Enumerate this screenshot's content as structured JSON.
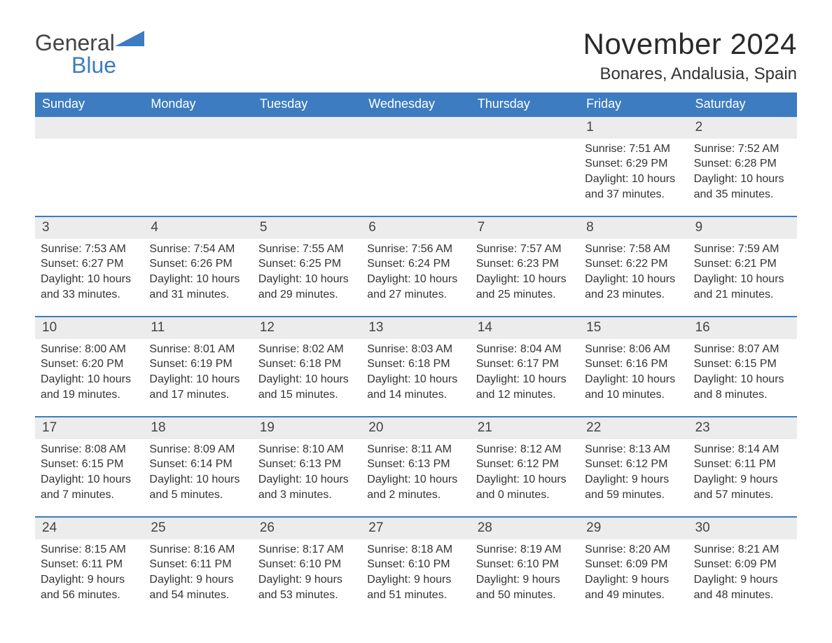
{
  "brand": {
    "name_a": "General",
    "name_b": "Blue",
    "brand_color": "#3d7cc0"
  },
  "title": {
    "month": "November 2024",
    "location": "Bonares, Andalusia, Spain"
  },
  "weekdays": [
    "Sunday",
    "Monday",
    "Tuesday",
    "Wednesday",
    "Thursday",
    "Friday",
    "Saturday"
  ],
  "weeks": [
    [
      {
        "blank": true
      },
      {
        "blank": true
      },
      {
        "blank": true
      },
      {
        "blank": true
      },
      {
        "blank": true
      },
      {
        "date": "1",
        "sunrise": "Sunrise: 7:51 AM",
        "sunset": "Sunset: 6:29 PM",
        "daylight": "Daylight: 10 hours and 37 minutes."
      },
      {
        "date": "2",
        "sunrise": "Sunrise: 7:52 AM",
        "sunset": "Sunset: 6:28 PM",
        "daylight": "Daylight: 10 hours and 35 minutes."
      }
    ],
    [
      {
        "date": "3",
        "sunrise": "Sunrise: 7:53 AM",
        "sunset": "Sunset: 6:27 PM",
        "daylight": "Daylight: 10 hours and 33 minutes."
      },
      {
        "date": "4",
        "sunrise": "Sunrise: 7:54 AM",
        "sunset": "Sunset: 6:26 PM",
        "daylight": "Daylight: 10 hours and 31 minutes."
      },
      {
        "date": "5",
        "sunrise": "Sunrise: 7:55 AM",
        "sunset": "Sunset: 6:25 PM",
        "daylight": "Daylight: 10 hours and 29 minutes."
      },
      {
        "date": "6",
        "sunrise": "Sunrise: 7:56 AM",
        "sunset": "Sunset: 6:24 PM",
        "daylight": "Daylight: 10 hours and 27 minutes."
      },
      {
        "date": "7",
        "sunrise": "Sunrise: 7:57 AM",
        "sunset": "Sunset: 6:23 PM",
        "daylight": "Daylight: 10 hours and 25 minutes."
      },
      {
        "date": "8",
        "sunrise": "Sunrise: 7:58 AM",
        "sunset": "Sunset: 6:22 PM",
        "daylight": "Daylight: 10 hours and 23 minutes."
      },
      {
        "date": "9",
        "sunrise": "Sunrise: 7:59 AM",
        "sunset": "Sunset: 6:21 PM",
        "daylight": "Daylight: 10 hours and 21 minutes."
      }
    ],
    [
      {
        "date": "10",
        "sunrise": "Sunrise: 8:00 AM",
        "sunset": "Sunset: 6:20 PM",
        "daylight": "Daylight: 10 hours and 19 minutes."
      },
      {
        "date": "11",
        "sunrise": "Sunrise: 8:01 AM",
        "sunset": "Sunset: 6:19 PM",
        "daylight": "Daylight: 10 hours and 17 minutes."
      },
      {
        "date": "12",
        "sunrise": "Sunrise: 8:02 AM",
        "sunset": "Sunset: 6:18 PM",
        "daylight": "Daylight: 10 hours and 15 minutes."
      },
      {
        "date": "13",
        "sunrise": "Sunrise: 8:03 AM",
        "sunset": "Sunset: 6:18 PM",
        "daylight": "Daylight: 10 hours and 14 minutes."
      },
      {
        "date": "14",
        "sunrise": "Sunrise: 8:04 AM",
        "sunset": "Sunset: 6:17 PM",
        "daylight": "Daylight: 10 hours and 12 minutes."
      },
      {
        "date": "15",
        "sunrise": "Sunrise: 8:06 AM",
        "sunset": "Sunset: 6:16 PM",
        "daylight": "Daylight: 10 hours and 10 minutes."
      },
      {
        "date": "16",
        "sunrise": "Sunrise: 8:07 AM",
        "sunset": "Sunset: 6:15 PM",
        "daylight": "Daylight: 10 hours and 8 minutes."
      }
    ],
    [
      {
        "date": "17",
        "sunrise": "Sunrise: 8:08 AM",
        "sunset": "Sunset: 6:15 PM",
        "daylight": "Daylight: 10 hours and 7 minutes."
      },
      {
        "date": "18",
        "sunrise": "Sunrise: 8:09 AM",
        "sunset": "Sunset: 6:14 PM",
        "daylight": "Daylight: 10 hours and 5 minutes."
      },
      {
        "date": "19",
        "sunrise": "Sunrise: 8:10 AM",
        "sunset": "Sunset: 6:13 PM",
        "daylight": "Daylight: 10 hours and 3 minutes."
      },
      {
        "date": "20",
        "sunrise": "Sunrise: 8:11 AM",
        "sunset": "Sunset: 6:13 PM",
        "daylight": "Daylight: 10 hours and 2 minutes."
      },
      {
        "date": "21",
        "sunrise": "Sunrise: 8:12 AM",
        "sunset": "Sunset: 6:12 PM",
        "daylight": "Daylight: 10 hours and 0 minutes."
      },
      {
        "date": "22",
        "sunrise": "Sunrise: 8:13 AM",
        "sunset": "Sunset: 6:12 PM",
        "daylight": "Daylight: 9 hours and 59 minutes."
      },
      {
        "date": "23",
        "sunrise": "Sunrise: 8:14 AM",
        "sunset": "Sunset: 6:11 PM",
        "daylight": "Daylight: 9 hours and 57 minutes."
      }
    ],
    [
      {
        "date": "24",
        "sunrise": "Sunrise: 8:15 AM",
        "sunset": "Sunset: 6:11 PM",
        "daylight": "Daylight: 9 hours and 56 minutes."
      },
      {
        "date": "25",
        "sunrise": "Sunrise: 8:16 AM",
        "sunset": "Sunset: 6:11 PM",
        "daylight": "Daylight: 9 hours and 54 minutes."
      },
      {
        "date": "26",
        "sunrise": "Sunrise: 8:17 AM",
        "sunset": "Sunset: 6:10 PM",
        "daylight": "Daylight: 9 hours and 53 minutes."
      },
      {
        "date": "27",
        "sunrise": "Sunrise: 8:18 AM",
        "sunset": "Sunset: 6:10 PM",
        "daylight": "Daylight: 9 hours and 51 minutes."
      },
      {
        "date": "28",
        "sunrise": "Sunrise: 8:19 AM",
        "sunset": "Sunset: 6:10 PM",
        "daylight": "Daylight: 9 hours and 50 minutes."
      },
      {
        "date": "29",
        "sunrise": "Sunrise: 8:20 AM",
        "sunset": "Sunset: 6:09 PM",
        "daylight": "Daylight: 9 hours and 49 minutes."
      },
      {
        "date": "30",
        "sunrise": "Sunrise: 8:21 AM",
        "sunset": "Sunset: 6:09 PM",
        "daylight": "Daylight: 9 hours and 48 minutes."
      }
    ]
  ],
  "style": {
    "header_bg": "#3d7cc0",
    "date_bg": "#ececec",
    "row_border": "#3d7cc0",
    "page_bg": "#ffffff",
    "text": "#333333",
    "month_title_fontsize": 42,
    "location_fontsize": 24,
    "weekday_fontsize": 18,
    "body_fontsize": 16
  }
}
